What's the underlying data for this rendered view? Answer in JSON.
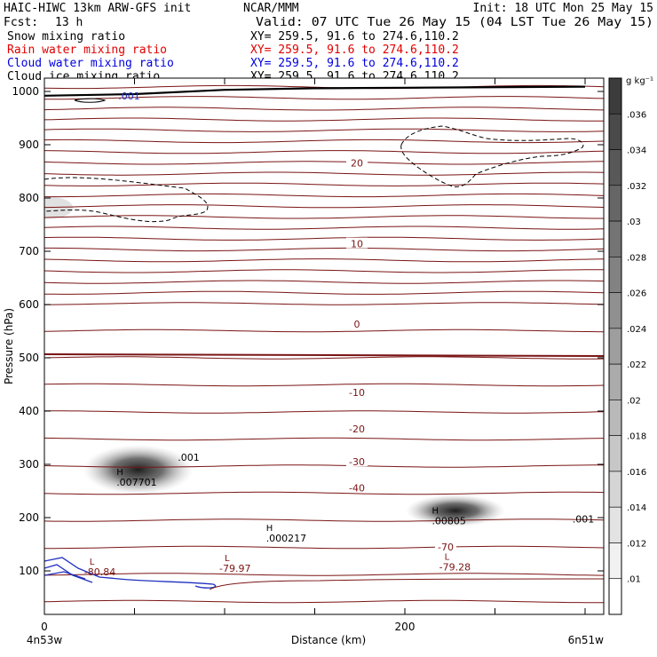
{
  "header": {
    "model": "HAIC-HIWC 13km ARW-GFS init",
    "org": "NCAR/MMM",
    "init": "Init: 18 UTC Mon 25 May 15",
    "fcst_label": "Fcst:",
    "fcst_value": "13 h",
    "valid": "Valid: 07 UTC Tue 26 May 15 (04 LST Tue 26 May 15)"
  },
  "fields": [
    {
      "name": "Snow mixing ratio",
      "xy": "XY= 259.5, 91.6 to 274.6,110.2",
      "color": "#000000"
    },
    {
      "name": "Rain water mixing ratio",
      "xy": "XY= 259.5, 91.6 to 274.6,110.2",
      "color": "#e00000"
    },
    {
      "name": "Cloud water mixing ratio",
      "xy": "XY= 259.5, 91.6 to 274.6,110.2",
      "color": "#0000e0"
    },
    {
      "name": "Cloud ice mixing ratio",
      "xy": "XY= 259.5, 91.6 to 274.6,110.2",
      "color": "#000000"
    }
  ],
  "colors": {
    "isotherm": "#7a1414",
    "snow_contour": "#000000",
    "cloud_water": "#2030c0",
    "terrain": "#000000",
    "axis": "#000000"
  },
  "chart_data": {
    "type": "heatmap",
    "xlabel": "Distance (km)",
    "ylabel": "Pressure (hPa)",
    "xlim": [
      0,
      300
    ],
    "ylim": [
      1050,
      50
    ],
    "x_ticks": [
      0,
      200
    ],
    "y_ticks": [
      100,
      200,
      300,
      400,
      500,
      600,
      700,
      800,
      900,
      1000
    ],
    "x_endpoints": [
      "4n53w",
      "6n51w"
    ],
    "colorbar": {
      "unit": "g kg⁻¹",
      "labels": [
        ".036",
        ".034",
        ".032",
        ".03",
        ".028",
        ".026",
        ".024",
        ".022",
        ".02",
        ".018",
        ".016",
        ".014",
        ".012",
        ".01"
      ],
      "top_value": 0.038,
      "bottom_value": 0.008
    },
    "temperature_contours": [
      {
        "value": -70,
        "label": "-70",
        "pressure": 145
      },
      {
        "value": -40,
        "label": "-40",
        "pressure": 256
      },
      {
        "value": -30,
        "label": "-30",
        "pressure": 305
      },
      {
        "value": -20,
        "label": "-20",
        "pressure": 367
      },
      {
        "value": -10,
        "label": "-10",
        "pressure": 435
      },
      {
        "value": 0,
        "label": "0",
        "pressure": 563
      },
      {
        "value": 10,
        "label": "10",
        "pressure": 714
      },
      {
        "value": 20,
        "label": "20",
        "pressure": 866
      }
    ],
    "extrema": [
      {
        "type": "L",
        "value": "-80.84",
        "x": 25,
        "pressure": 95
      },
      {
        "type": "L",
        "value": "-79.97",
        "x": 100,
        "pressure": 102
      },
      {
        "type": "L",
        "value": "-79.28",
        "x": 222,
        "pressure": 104
      },
      {
        "type": "H",
        "value": ".000217",
        "x": 123,
        "pressure": 158
      },
      {
        "type": "H",
        "value": ".00805",
        "x": 215,
        "pressure": 191
      },
      {
        "type": "H",
        "value": ".007701",
        "x": 40,
        "pressure": 263
      }
    ],
    "contour_labels": [
      {
        "value": ".001",
        "x": 74,
        "pressure": 307,
        "color": "#000000"
      },
      {
        "value": ".001",
        "x": 293,
        "pressure": 191,
        "color": "#000000"
      },
      {
        "value": ".001",
        "x": 41,
        "pressure": 985,
        "color": "#2030c0"
      }
    ],
    "snow_maxima": [
      {
        "x": 52,
        "pressure": 290,
        "value": 0.0077
      },
      {
        "x": 228,
        "pressure": 213,
        "value": 0.00805
      }
    ],
    "terrain": [
      {
        "x": 0,
        "pressure": 992
      },
      {
        "x": 50,
        "pressure": 995
      },
      {
        "x": 100,
        "pressure": 1003
      },
      {
        "x": 150,
        "pressure": 1006
      },
      {
        "x": 200,
        "pressure": 1007
      },
      {
        "x": 300,
        "pressure": 1009
      }
    ]
  }
}
